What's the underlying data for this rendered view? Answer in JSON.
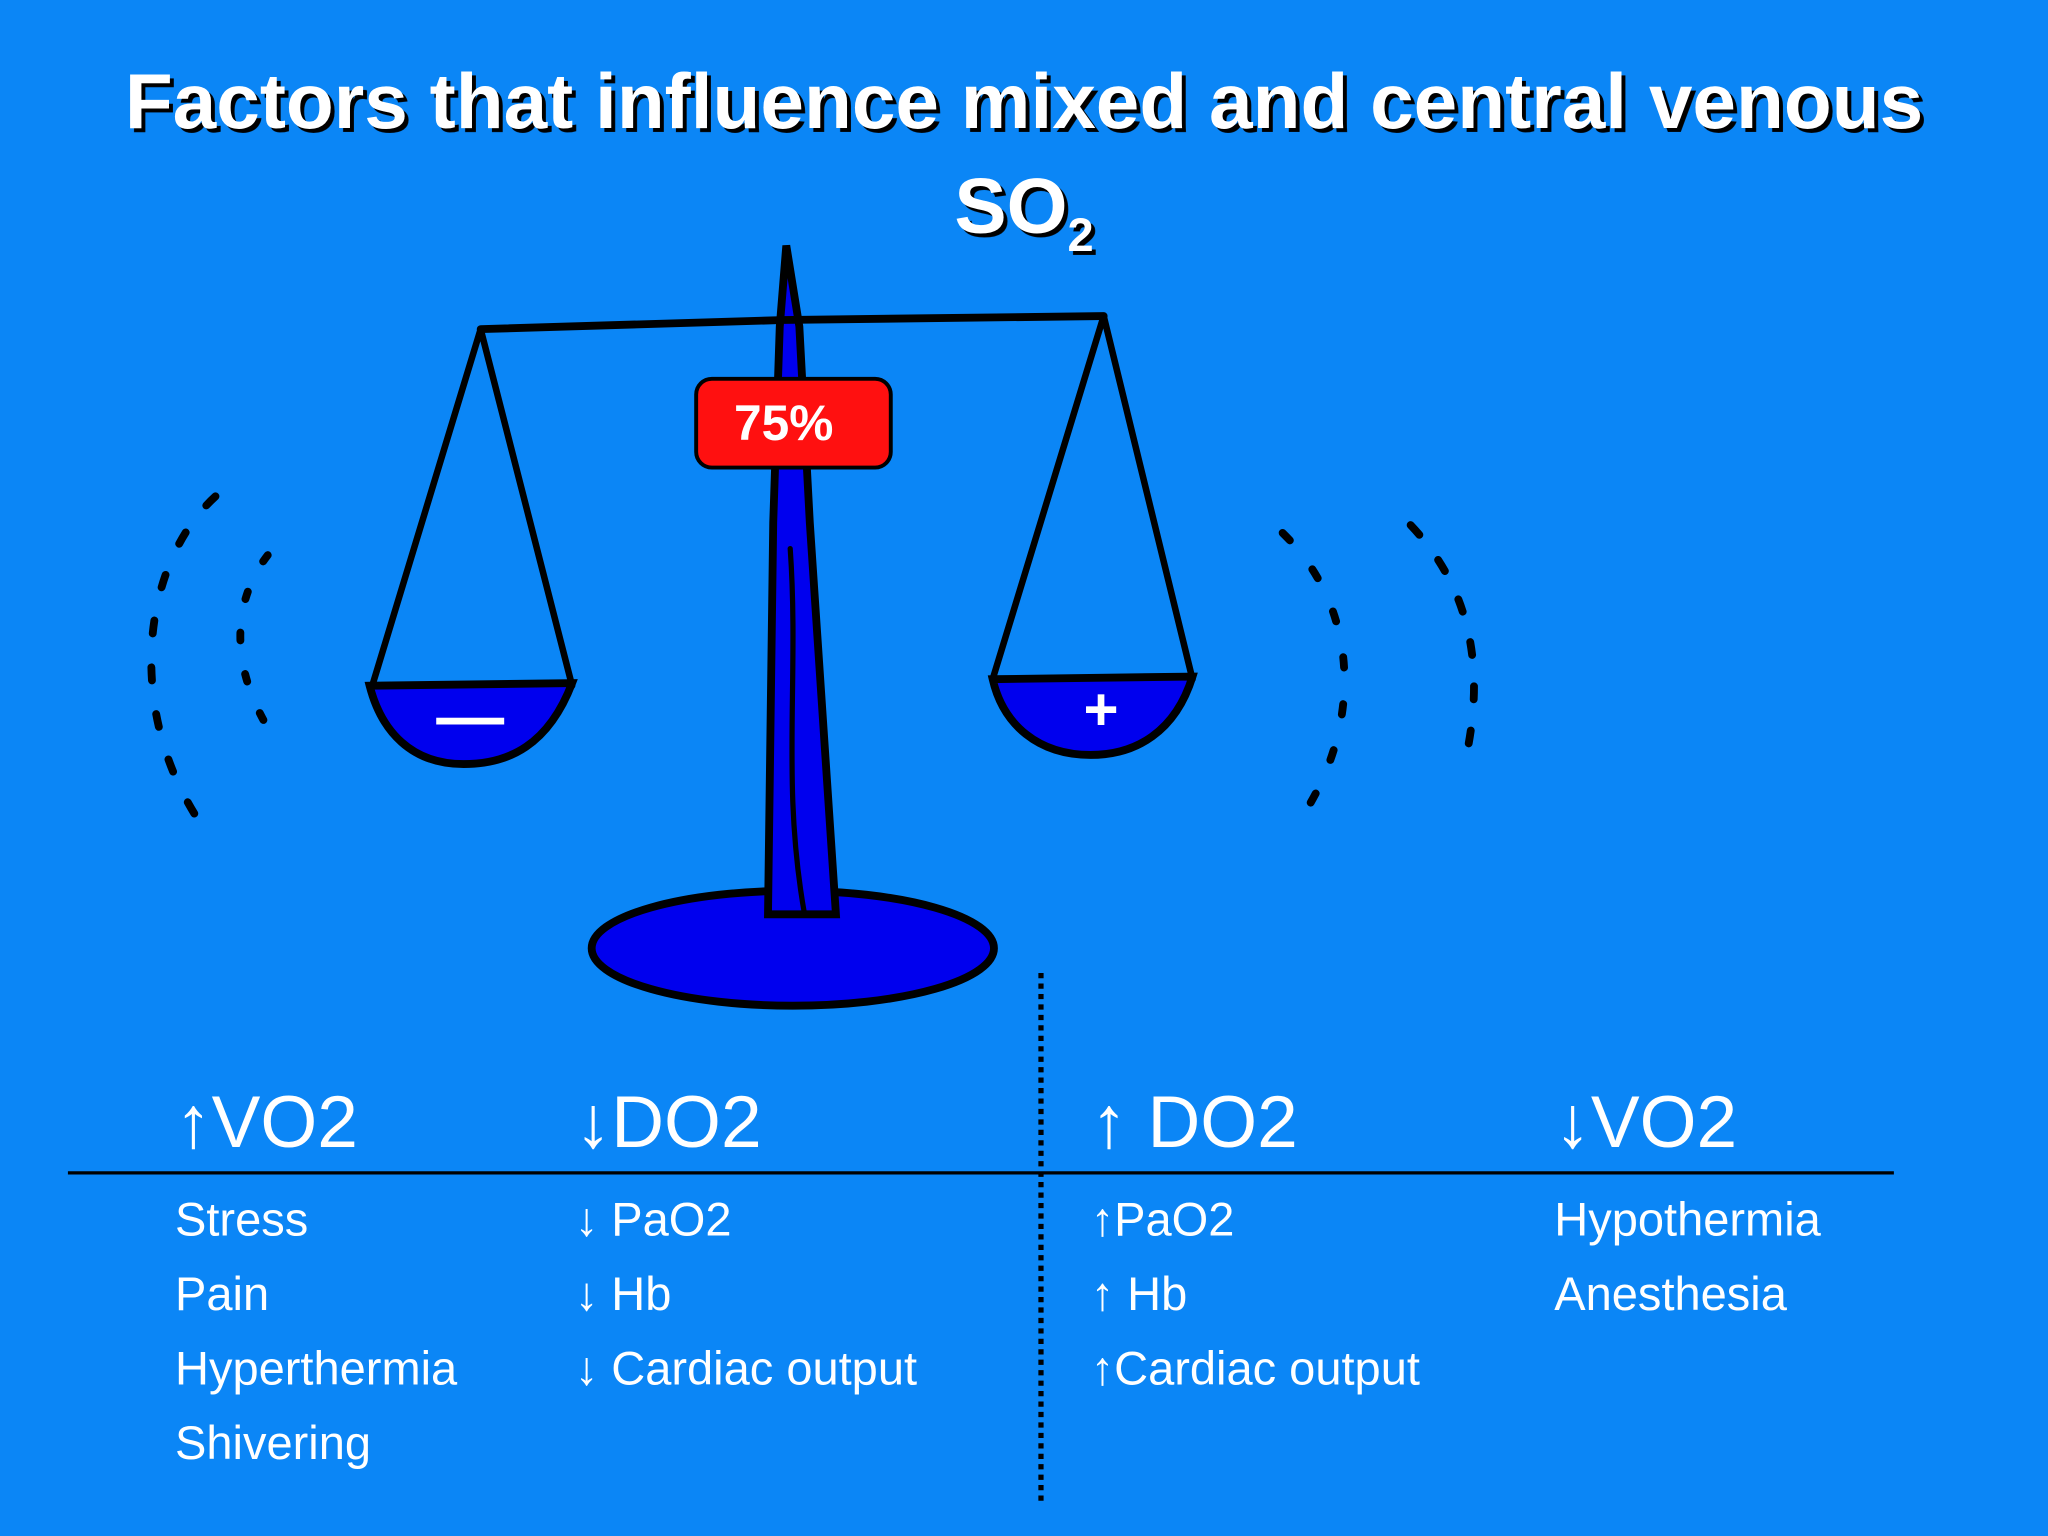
{
  "title": {
    "line1": "Factors that influence mixed and central venous",
    "line2": "SO",
    "subscript": "2"
  },
  "scale": {
    "badge": "75%",
    "left_sign": "—",
    "right_sign": "+"
  },
  "columns": [
    {
      "header": "↑VO2",
      "items": [
        "Stress",
        "Pain",
        "Hyperthermia",
        "Shivering"
      ]
    },
    {
      "header": "↓DO2",
      "items": [
        "↓ PaO2",
        "↓ Hb",
        "↓ Cardiac output"
      ]
    },
    {
      "header": "↑ DO2",
      "items": [
        "↑PaO2",
        "↑ Hb",
        "↑Cardiac output"
      ]
    },
    {
      "header": "↓VO2",
      "items": [
        "Hypothermia",
        "Anesthesia"
      ]
    }
  ]
}
